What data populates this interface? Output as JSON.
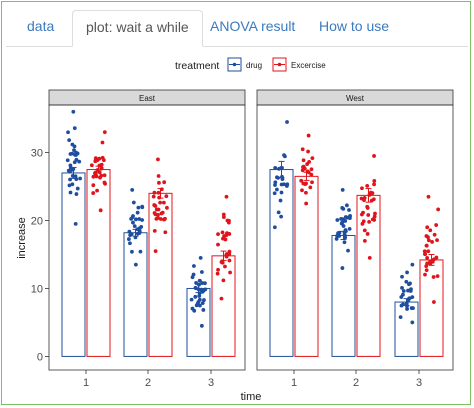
{
  "tabs": [
    {
      "label": "data",
      "active": false
    },
    {
      "label": "plot: wait a while",
      "active": true
    },
    {
      "label": "ANOVA result",
      "active": false
    },
    {
      "label": "How to use",
      "active": false
    }
  ],
  "colors": {
    "drug": "#1f4e9e",
    "Excercise": "#e0141b",
    "strip_bg": "#d9d9d9",
    "tab_link": "#3a7abf",
    "frame_border": "#7dbf63"
  },
  "chart_data": {
    "type": "bar",
    "legend": {
      "title": "treatment",
      "entries": [
        "drug",
        "Excercise"
      ],
      "position": "top"
    },
    "facets": [
      "East",
      "West"
    ],
    "xlabel": "time",
    "ylabel": "increase",
    "categories": [
      "1",
      "2",
      "3"
    ],
    "ylim": [
      -2,
      37
    ],
    "yticks": [
      0,
      10,
      20,
      30
    ],
    "grid": false,
    "error_bars": true,
    "jitter_points": true,
    "series": [
      {
        "name": "drug",
        "facet": "East",
        "values": [
          27.0,
          18.2,
          10.0
        ],
        "errors": [
          0.8,
          0.5,
          0.6
        ]
      },
      {
        "name": "Excercise",
        "facet": "East",
        "values": [
          27.5,
          24.0,
          14.8
        ],
        "errors": [
          0.5,
          0.7,
          0.7
        ]
      },
      {
        "name": "drug",
        "facet": "West",
        "values": [
          27.5,
          17.8,
          8.0
        ],
        "errors": [
          1.2,
          0.6,
          0.5
        ]
      },
      {
        "name": "Excercise",
        "facet": "West",
        "values": [
          26.5,
          23.7,
          14.2
        ],
        "errors": [
          0.6,
          1.0,
          0.8
        ]
      }
    ],
    "points": [
      {
        "facet": "East",
        "series": "drug",
        "time": "1",
        "range": [
          19.5,
          36.0
        ],
        "n": 34
      },
      {
        "facet": "East",
        "series": "Excercise",
        "time": "1",
        "range": [
          21.5,
          33.0
        ],
        "n": 30
      },
      {
        "facet": "East",
        "series": "drug",
        "time": "2",
        "range": [
          13.5,
          24.5
        ],
        "n": 30
      },
      {
        "facet": "East",
        "series": "Excercise",
        "time": "2",
        "range": [
          15.5,
          29.0
        ],
        "n": 30
      },
      {
        "facet": "East",
        "series": "drug",
        "time": "3",
        "range": [
          4.5,
          14.5
        ],
        "n": 34
      },
      {
        "facet": "East",
        "series": "Excercise",
        "time": "3",
        "range": [
          8.5,
          23.5
        ],
        "n": 30
      },
      {
        "facet": "West",
        "series": "drug",
        "time": "1",
        "range": [
          19.0,
          34.5
        ],
        "n": 24
      },
      {
        "facet": "West",
        "series": "Excercise",
        "time": "1",
        "range": [
          22.5,
          32.5
        ],
        "n": 24
      },
      {
        "facet": "West",
        "series": "drug",
        "time": "2",
        "range": [
          13.0,
          24.5
        ],
        "n": 30
      },
      {
        "facet": "West",
        "series": "Excercise",
        "time": "2",
        "range": [
          14.5,
          29.5
        ],
        "n": 30
      },
      {
        "facet": "West",
        "series": "drug",
        "time": "3",
        "range": [
          5.0,
          13.5
        ],
        "n": 26
      },
      {
        "facet": "West",
        "series": "Excercise",
        "time": "3",
        "range": [
          8.0,
          23.5
        ],
        "n": 30
      }
    ]
  }
}
